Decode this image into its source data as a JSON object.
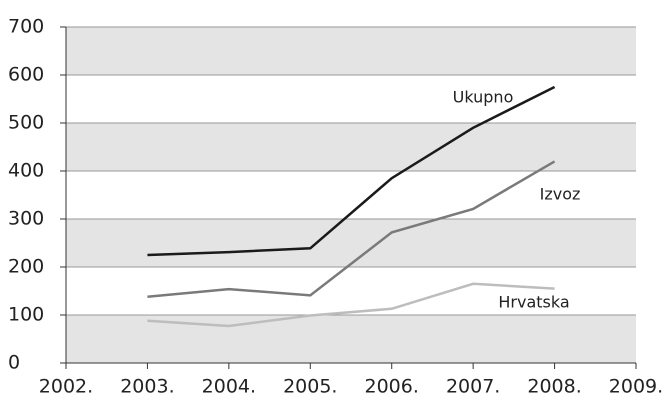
{
  "chart_data": {
    "type": "line",
    "categories": [
      "2002.",
      "2003.",
      "2004.",
      "2005.",
      "2006.",
      "2007.",
      "2008.",
      "2009."
    ],
    "series": [
      {
        "name": "Ukupno",
        "color": "#1a1a1a",
        "values": [
          null,
          225,
          231,
          239,
          385,
          490,
          575,
          null
        ]
      },
      {
        "name": "Izvoz",
        "color": "#7a7a7a",
        "values": [
          null,
          138,
          154,
          141,
          272,
          321,
          420,
          null
        ]
      },
      {
        "name": "Hrvatska",
        "color": "#bdbdbd",
        "values": [
          null,
          88,
          77,
          99,
          113,
          165,
          155,
          null
        ]
      }
    ],
    "ylim": [
      0,
      700
    ],
    "yticks": [
      0,
      100,
      200,
      300,
      400,
      500,
      600,
      700
    ],
    "grid": true,
    "band_color": "#e4e4e4"
  }
}
